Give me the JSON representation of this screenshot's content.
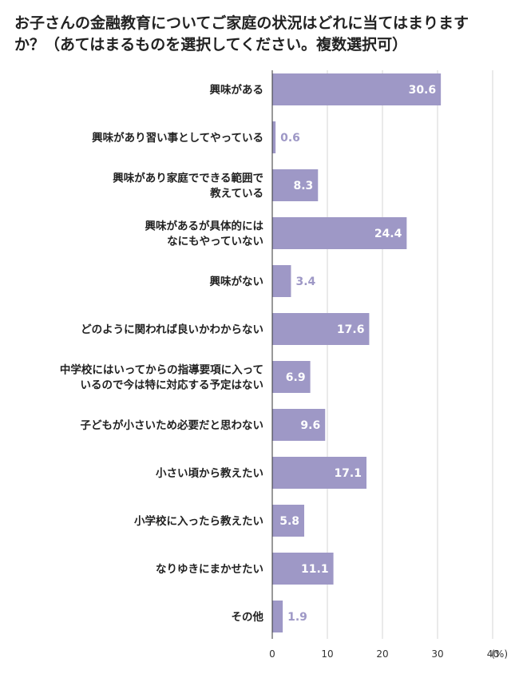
{
  "chart_data": {
    "type": "bar",
    "orientation": "horizontal",
    "title": "お子さんの金融教育についてご家庭の状況はどれに当てはまりますか？（あてはまるものを選択してください。複数選択可）",
    "unit": "(%)",
    "xlim": [
      0,
      40
    ],
    "xticks": [
      "0",
      "10",
      "20",
      "30",
      "40"
    ],
    "grid": true,
    "bar_color": "#9e98c6",
    "categories": [
      [
        "興味がある"
      ],
      [
        "興味があり習い事としてやっている"
      ],
      [
        "興味があり家庭でできる範囲で",
        "教えている"
      ],
      [
        "興味があるが具体的には",
        "なにもやっていない"
      ],
      [
        "興味がない"
      ],
      [
        "どのように関われば良いかわからない"
      ],
      [
        "中学校にはいってからの指導要項に入って",
        "いるので今は特に対応する予定はない"
      ],
      [
        "子どもが小さいため必要だと思わない"
      ],
      [
        "小さい頃から教えたい"
      ],
      [
        "小学校に入ったら教えたい"
      ],
      [
        "なりゆきにまかせたい"
      ],
      [
        "その他"
      ]
    ],
    "values": [
      30.6,
      0.6,
      8.3,
      24.4,
      3.4,
      17.6,
      6.9,
      9.6,
      17.1,
      5.8,
      11.1,
      1.9
    ],
    "value_labels": [
      "30.6",
      "0.6",
      "8.3",
      "24.4",
      "3.4",
      "17.6",
      "6.9",
      "9.6",
      "17.1",
      "5.8",
      "11.1",
      "1.9"
    ]
  }
}
